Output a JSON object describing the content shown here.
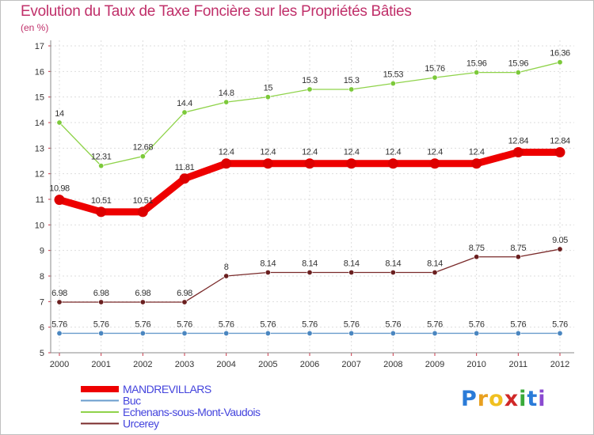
{
  "page": {
    "title": "Evolution du Taux de Taxe Foncière sur les Propriétés Bâties",
    "subtitle": "(en %)"
  },
  "logo": {
    "text": "Proxiti",
    "colors": [
      "#2a7bd8",
      "#e8a020",
      "#f0c020",
      "#d02828",
      "#3aaa3a",
      "#2a7bd8",
      "#8a4ad0"
    ]
  },
  "chart_data": {
    "type": "line",
    "title": "Evolution du Taux de Taxe Foncière sur les Propriétés Bâties",
    "ylabel": "(en %)",
    "xlabel": "",
    "ylim": [
      5,
      17
    ],
    "yticks": [
      5,
      6,
      7,
      8,
      9,
      10,
      11,
      12,
      13,
      14,
      15,
      16,
      17
    ],
    "categories": [
      "2000",
      "2001",
      "2002",
      "2003",
      "2004",
      "2005",
      "2006",
      "2007",
      "2008",
      "2009",
      "2010",
      "2011",
      "2012"
    ],
    "grid": true,
    "legend_position": "bottom-left",
    "series": [
      {
        "name": "Echenans-sous-Mont-Vaudois",
        "color": "#8fd34a",
        "marker": "#7cc93a",
        "values": [
          14,
          12.31,
          12.68,
          14.4,
          14.8,
          15,
          15.3,
          15.3,
          15.53,
          15.76,
          15.96,
          15.96,
          16.36
        ],
        "labels": [
          "14",
          "12.31",
          "12.68",
          "14.4",
          "14.8",
          "15",
          "15.3",
          "15.3",
          "15.53",
          "15.76",
          "15.96",
          "15.96",
          "16.36"
        ]
      },
      {
        "name": "MANDREVILLARS",
        "color": "#ee0000",
        "marker": "#dd0000",
        "values": [
          10.98,
          10.51,
          10.51,
          11.81,
          12.4,
          12.4,
          12.4,
          12.4,
          12.4,
          12.4,
          12.4,
          12.84,
          12.84
        ],
        "labels": [
          "10.98",
          "10.51",
          "10.51",
          "11.81",
          "12.4",
          "12.4",
          "12.4",
          "12.4",
          "12.4",
          "12.4",
          "12.4",
          "12.84",
          "12.84"
        ]
      },
      {
        "name": "Urcerey",
        "color": "#7a2a2a",
        "marker": "#6a1f1f",
        "values": [
          6.98,
          6.98,
          6.98,
          6.98,
          8,
          8.14,
          8.14,
          8.14,
          8.14,
          8.14,
          8.75,
          8.75,
          9.05
        ],
        "labels": [
          "6.98",
          "6.98",
          "6.98",
          "6.98",
          "8",
          "8.14",
          "8.14",
          "8.14",
          "8.14",
          "8.14",
          "8.75",
          "8.75",
          "9.05"
        ]
      },
      {
        "name": "Buc",
        "color": "#6a9ccc",
        "marker": "#4a86c0",
        "values": [
          5.76,
          5.76,
          5.76,
          5.76,
          5.76,
          5.76,
          5.76,
          5.76,
          5.76,
          5.76,
          5.76,
          5.76,
          5.76
        ],
        "labels": [
          "5.76",
          "5.76",
          "5.76",
          "5.76",
          "5.76",
          "5.76",
          "5.76",
          "5.76",
          "5.76",
          "5.76",
          "5.76",
          "5.76",
          "5.76"
        ]
      }
    ],
    "legend": [
      {
        "name": "MANDREVILLARS",
        "color": "#ee0000"
      },
      {
        "name": "Buc",
        "color": "#6a9ccc"
      },
      {
        "name": "Echenans-sous-Mont-Vaudois",
        "color": "#8fd34a"
      },
      {
        "name": "Urcerey",
        "color": "#7a2a2a"
      }
    ]
  }
}
